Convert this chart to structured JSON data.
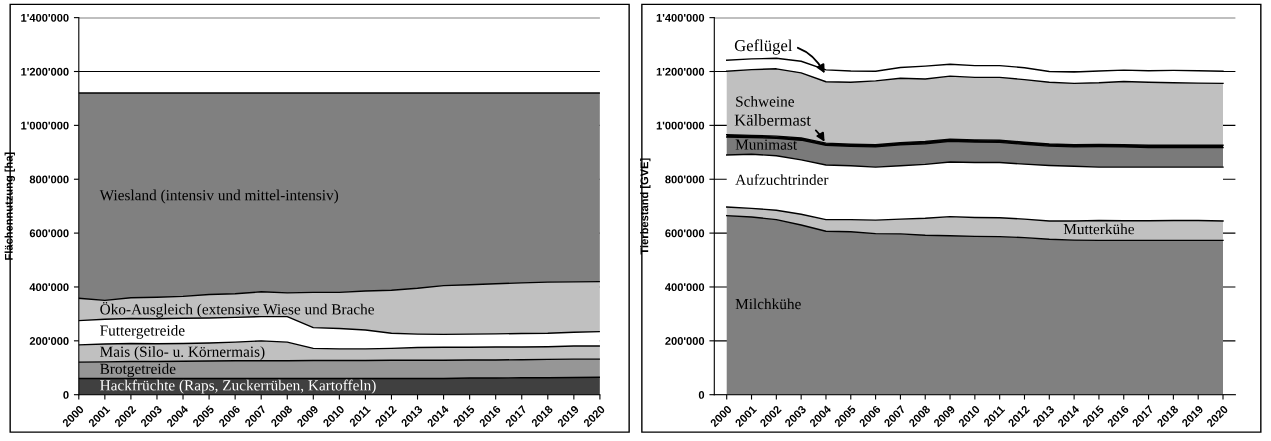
{
  "chart_data": [
    {
      "type": "area",
      "stacked": true,
      "ylabel": "Flächennutzung [ha]",
      "grid": "y",
      "x": [
        2000,
        2001,
        2002,
        2003,
        2004,
        2005,
        2006,
        2007,
        2008,
        2009,
        2010,
        2011,
        2012,
        2013,
        2014,
        2015,
        2016,
        2017,
        2018,
        2019,
        2020
      ],
      "xlim": [
        2000,
        2020
      ],
      "xticks": [
        2000,
        2001,
        2002,
        2003,
        2004,
        2005,
        2006,
        2007,
        2008,
        2009,
        2010,
        2011,
        2012,
        2013,
        2014,
        2015,
        2016,
        2017,
        2018,
        2019,
        2020
      ],
      "ylim": [
        0,
        1400000
      ],
      "yticks": [
        0,
        {
          "value": 200000,
          "label": "200'000"
        },
        {
          "value": 400000,
          "label": "400'000"
        },
        {
          "value": 600000,
          "label": "600'000"
        },
        {
          "value": 800000,
          "label": "800'000"
        },
        {
          "value": 1000000,
          "label": "1'000'000"
        },
        {
          "value": 1200000,
          "label": "1'200'000"
        },
        {
          "value": 1400000,
          "label": "1'400'000"
        }
      ],
      "series": [
        {
          "name": "Hackfrüchte (Raps, Zuckerrüben, Kartoffeln)",
          "color": "#404040",
          "values": [
            60000,
            60000,
            60000,
            60000,
            60000,
            60000,
            60000,
            60000,
            60000,
            60000,
            60000,
            60000,
            60000,
            60000,
            60000,
            62000,
            62000,
            63000,
            63000,
            64000,
            65000
          ]
        },
        {
          "name": "Brotgetreide",
          "color": "#969696",
          "values": [
            61000,
            62000,
            63000,
            63000,
            64000,
            65000,
            66000,
            66000,
            66000,
            67000,
            67000,
            67000,
            68000,
            68000,
            68000,
            67000,
            67000,
            67000,
            68000,
            68000,
            67000
          ]
        },
        {
          "name": "Mais (Silo- u. Körnermais)",
          "color": "#c0c0c0",
          "values": [
            64000,
            66000,
            67000,
            66000,
            66000,
            67000,
            69000,
            74000,
            69000,
            45000,
            43000,
            43000,
            44000,
            47000,
            48000,
            47000,
            48000,
            47000,
            47000,
            49000,
            49000
          ]
        },
        {
          "name": "Futtergetreide",
          "color": "#ffffff",
          "values": [
            90000,
            92000,
            93000,
            93000,
            94000,
            93000,
            92000,
            90000,
            95000,
            77000,
            76000,
            70000,
            56000,
            50000,
            48000,
            49000,
            49000,
            50000,
            50000,
            51000,
            53000
          ]
        },
        {
          "name": "Öko-Ausgleich (extensive Wiese und Brache",
          "color": "#c0c0c0",
          "values": [
            83000,
            70000,
            77000,
            80000,
            81000,
            87000,
            88000,
            92000,
            88000,
            131000,
            134000,
            145000,
            160000,
            170000,
            181000,
            183000,
            186000,
            188000,
            190000,
            187000,
            186000
          ]
        },
        {
          "name": "Wiesland (intensiv und mittel-intensiv)",
          "color": "#808080",
          "values": [
            762000,
            770000,
            760000,
            758000,
            755000,
            748000,
            745000,
            738000,
            742000,
            740000,
            740000,
            735000,
            732000,
            725000,
            715000,
            712000,
            708000,
            705000,
            702000,
            701000,
            700000
          ]
        }
      ]
    },
    {
      "type": "area",
      "stacked": true,
      "ylabel": "Tierbestand [GVE]",
      "grid": "y",
      "x": [
        2000,
        2001,
        2002,
        2003,
        2004,
        2005,
        2006,
        2007,
        2008,
        2009,
        2010,
        2011,
        2012,
        2013,
        2014,
        2015,
        2016,
        2017,
        2018,
        2019,
        2020
      ],
      "xlim": [
        1999.5,
        2020.5
      ],
      "xticks": [
        2000,
        2001,
        2002,
        2003,
        2004,
        2005,
        2006,
        2007,
        2008,
        2009,
        2010,
        2011,
        2012,
        2013,
        2014,
        2015,
        2016,
        2017,
        2018,
        2019,
        2020
      ],
      "ylim": [
        0,
        1400000
      ],
      "yticks": [
        0,
        {
          "value": 200000,
          "label": "200'000"
        },
        {
          "value": 400000,
          "label": "400'000"
        },
        {
          "value": 600000,
          "label": "600'000"
        },
        {
          "value": 800000,
          "label": "800'000"
        },
        {
          "value": 1000000,
          "label": "1'000'000"
        },
        {
          "value": 1200000,
          "label": "1'200'000"
        },
        {
          "value": 1400000,
          "label": "1'400'000"
        }
      ],
      "series": [
        {
          "name": "Milchkühe",
          "color": "#808080",
          "values": [
            665000,
            660000,
            650000,
            630000,
            607000,
            605000,
            598000,
            597000,
            592000,
            590000,
            588000,
            587000,
            583000,
            577000,
            574000,
            573000,
            573000,
            573000,
            573000,
            573000,
            573000
          ]
        },
        {
          "name": "Mutterkühe",
          "color": "#c0c0c0",
          "values": [
            32000,
            32000,
            35000,
            40000,
            43000,
            45000,
            50000,
            55000,
            63000,
            71000,
            70000,
            70000,
            69000,
            68000,
            71000,
            74000,
            73000,
            73000,
            74000,
            74000,
            72000
          ]
        },
        {
          "name": "Aufzuchtrinder",
          "color": "#ffffff",
          "values": [
            193000,
            201000,
            202000,
            202000,
            203000,
            200000,
            197000,
            198000,
            200000,
            203000,
            204000,
            205000,
            204000,
            206000,
            203000,
            198000,
            199000,
            199000,
            198000,
            198000,
            200000
          ]
        },
        {
          "name": "Munimast",
          "color": "#7a7a7a",
          "values": [
            67000,
            62000,
            65000,
            73000,
            73000,
            72000,
            75000,
            78000,
            77000,
            77000,
            76000,
            75000,
            74000,
            72000,
            72000,
            76000,
            75000,
            73000,
            73000,
            73000,
            73000
          ]
        },
        {
          "name": "Kälbermast",
          "color": "#000000",
          "values": [
            8000,
            8000,
            8000,
            8000,
            8000,
            8000,
            8000,
            8000,
            8000,
            8000,
            8000,
            8000,
            8000,
            8000,
            8000,
            8000,
            8000,
            8000,
            8000,
            8000,
            8000
          ]
        },
        {
          "name": "Schweine",
          "color": "#c0c0c0",
          "values": [
            236000,
            244000,
            250000,
            242000,
            228000,
            230000,
            237000,
            239000,
            232000,
            234000,
            232000,
            233000,
            232000,
            229000,
            228000,
            229000,
            235000,
            234000,
            232000,
            231000,
            230000
          ]
        },
        {
          "name": "Geflügel",
          "color": "#ffffff",
          "values": [
            41000,
            40000,
            39000,
            43000,
            44000,
            42000,
            36000,
            40000,
            48000,
            44000,
            44000,
            44000,
            44000,
            40000,
            42000,
            44000,
            42000,
            43000,
            46000,
            46000,
            45000
          ]
        }
      ]
    }
  ]
}
